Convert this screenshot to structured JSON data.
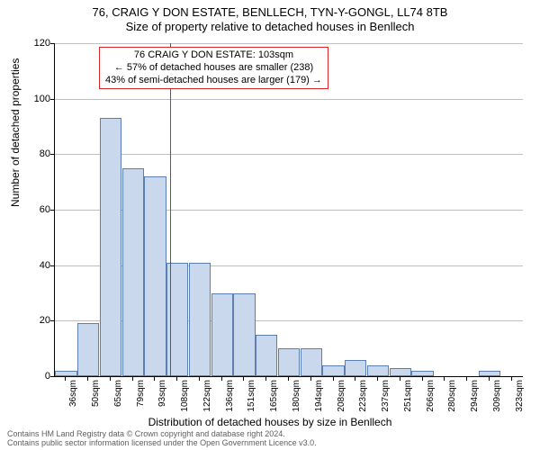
{
  "title": {
    "line1": "76, CRAIG Y DON ESTATE, BENLLECH, TYN-Y-GONGL, LL74 8TB",
    "line2": "Size of property relative to detached houses in Benllech"
  },
  "chart": {
    "type": "bar",
    "ylabel": "Number of detached properties",
    "xlabel": "Distribution of detached houses by size in Benllech",
    "ylim": [
      0,
      120
    ],
    "ytick_step": 20,
    "background_color": "#ffffff",
    "grid_color": "#7f7f7f",
    "bar_fill": "#c9d8ec",
    "bar_border": "#5b7fb0",
    "ref_line_color": "#d62728",
    "ref_line_x_label": "103sqm",
    "categories": [
      "36sqm",
      "50sqm",
      "65sqm",
      "79sqm",
      "93sqm",
      "108sqm",
      "122sqm",
      "136sqm",
      "151sqm",
      "165sqm",
      "180sqm",
      "194sqm",
      "208sqm",
      "223sqm",
      "237sqm",
      "251sqm",
      "266sqm",
      "280sqm",
      "294sqm",
      "309sqm",
      "323sqm"
    ],
    "values": [
      2,
      19,
      93,
      75,
      72,
      41,
      41,
      30,
      30,
      15,
      10,
      10,
      4,
      6,
      4,
      3,
      2,
      0,
      0,
      2,
      0
    ]
  },
  "annotation": {
    "line1": "76 CRAIG Y DON ESTATE: 103sqm",
    "line2": "← 57% of detached houses are smaller (238)",
    "line3": "43% of semi-detached houses are larger (179) →"
  },
  "footer": {
    "line1": "Contains HM Land Registry data © Crown copyright and database right 2024.",
    "line2": "Contains public sector information licensed under the Open Government Licence v3.0."
  }
}
